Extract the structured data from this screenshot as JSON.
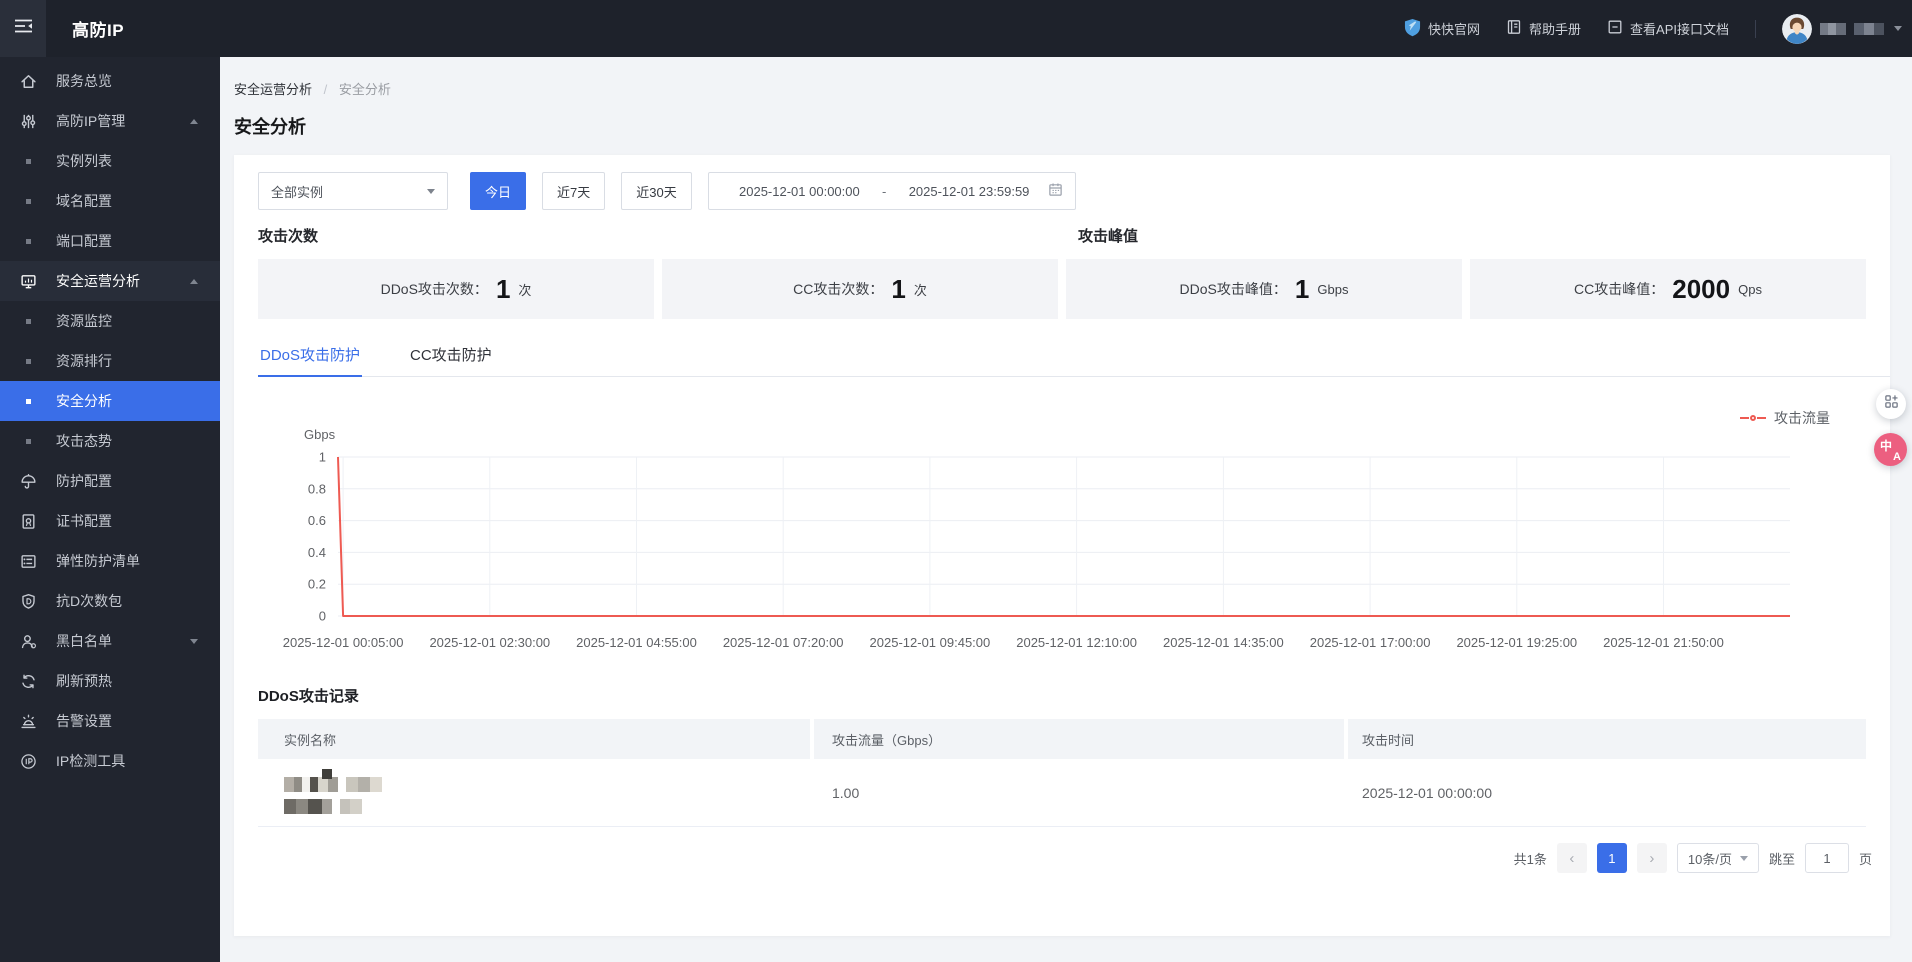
{
  "topbar": {
    "title": "高防IP",
    "links": [
      {
        "label": "快快官网",
        "icon": "shield-logo-icon"
      },
      {
        "label": "帮助手册",
        "icon": "manual-book-icon"
      },
      {
        "label": "查看API接口文档",
        "icon": "api-doc-icon"
      }
    ],
    "user": {
      "name_redacted": "mosaic"
    }
  },
  "sidebar": {
    "items": [
      {
        "label": "服务总览",
        "icon": "home-icon",
        "type": "item"
      },
      {
        "label": "高防IP管理",
        "icon": "sliders-icon",
        "type": "group",
        "expanded": true
      },
      {
        "label": "实例列表",
        "type": "sub"
      },
      {
        "label": "域名配置",
        "type": "sub"
      },
      {
        "label": "端口配置",
        "type": "sub"
      },
      {
        "label": "安全运营分析",
        "icon": "monitor-icon",
        "type": "group",
        "expanded": true,
        "highlighted": true
      },
      {
        "label": "资源监控",
        "type": "sub"
      },
      {
        "label": "资源排行",
        "type": "sub"
      },
      {
        "label": "安全分析",
        "type": "sub",
        "selected": true
      },
      {
        "label": "攻击态势",
        "type": "sub"
      },
      {
        "label": "防护配置",
        "icon": "umbrella-icon",
        "type": "item"
      },
      {
        "label": "证书配置",
        "icon": "certificate-icon",
        "type": "item"
      },
      {
        "label": "弹性防护清单",
        "icon": "list-icon",
        "type": "item"
      },
      {
        "label": "抗D次数包",
        "icon": "shield-d-icon",
        "type": "item"
      },
      {
        "label": "黑白名单",
        "icon": "user-icon",
        "type": "group",
        "expanded": false
      },
      {
        "label": "刷新预热",
        "icon": "refresh-icon",
        "type": "item"
      },
      {
        "label": "告警设置",
        "icon": "alarm-icon",
        "type": "item"
      },
      {
        "label": "IP检测工具",
        "icon": "ip-circle-icon",
        "type": "item"
      }
    ]
  },
  "breadcrumb": {
    "parent": "安全运营分析",
    "separator": "/",
    "current": "安全分析"
  },
  "page_title": "安全分析",
  "filters": {
    "instance_select_value": "全部实例",
    "quick_ranges": [
      {
        "label": "今日",
        "active": true
      },
      {
        "label": "近7天",
        "active": false
      },
      {
        "label": "近30天",
        "active": false
      }
    ],
    "date_start": "2025-12-01 00:00:00",
    "date_separator": "-",
    "date_end": "2025-12-01 23:59:59"
  },
  "stats": {
    "group_titles": [
      "攻击次数",
      "攻击峰值"
    ],
    "cards": [
      {
        "label": "DDoS攻击次数：",
        "value": "1",
        "unit": "次"
      },
      {
        "label": "CC攻击次数：",
        "value": "1",
        "unit": "次"
      },
      {
        "label": "DDoS攻击峰值：",
        "value": "1",
        "unit": "Gbps"
      },
      {
        "label": "CC攻击峰值：",
        "value": "2000",
        "unit": "Qps"
      }
    ]
  },
  "tabs": [
    {
      "label": "DDoS攻击防护",
      "active": true
    },
    {
      "label": "CC攻击防护",
      "active": false
    }
  ],
  "chart_data": {
    "type": "line",
    "title": "",
    "ylabel": "Gbps",
    "ylim": [
      0,
      1
    ],
    "yticks": [
      0,
      0.2,
      0.4,
      0.6,
      0.8,
      1
    ],
    "grid": true,
    "legend_position": "top-right",
    "x_start": "2025-12-01 00:00:00",
    "x_end": "2025-12-01 23:55:00",
    "x_labels": [
      "2025-12-01 00:05:00",
      "2025-12-01 02:30:00",
      "2025-12-01 04:55:00",
      "2025-12-01 07:20:00",
      "2025-12-01 09:45:00",
      "2025-12-01 12:10:00",
      "2025-12-01 14:35:00",
      "2025-12-01 17:00:00",
      "2025-12-01 19:25:00",
      "2025-12-01 21:50:00"
    ],
    "series": [
      {
        "name": "攻击流量",
        "color": "#ee5a52",
        "points": [
          [
            "2025-12-01 00:00:00",
            1
          ],
          [
            "2025-12-01 00:05:00",
            0
          ],
          [
            "2025-12-01 23:55:00",
            0
          ]
        ]
      }
    ]
  },
  "record_section": {
    "title": "DDoS攻击记录",
    "columns": [
      "实例名称",
      "攻击流量（Gbps）",
      "攻击时间"
    ],
    "rows": [
      {
        "instance_name_redacted": "mosaic",
        "traffic": "1.00",
        "time": "2025-12-01 00:00:00"
      }
    ]
  },
  "pagination": {
    "total": "共1条",
    "prev": "‹",
    "page": "1",
    "next": "›",
    "page_size": "10条/页",
    "jump_prefix": "跳至",
    "jump_value": "1",
    "jump_suffix": "页"
  },
  "colors": {
    "accent": "#3a6ee8",
    "chart_line": "#ee5a52",
    "translate_button": "#ec5f80",
    "sidebar_bg": "#21252f",
    "topbar_bg": "#1e222b"
  }
}
